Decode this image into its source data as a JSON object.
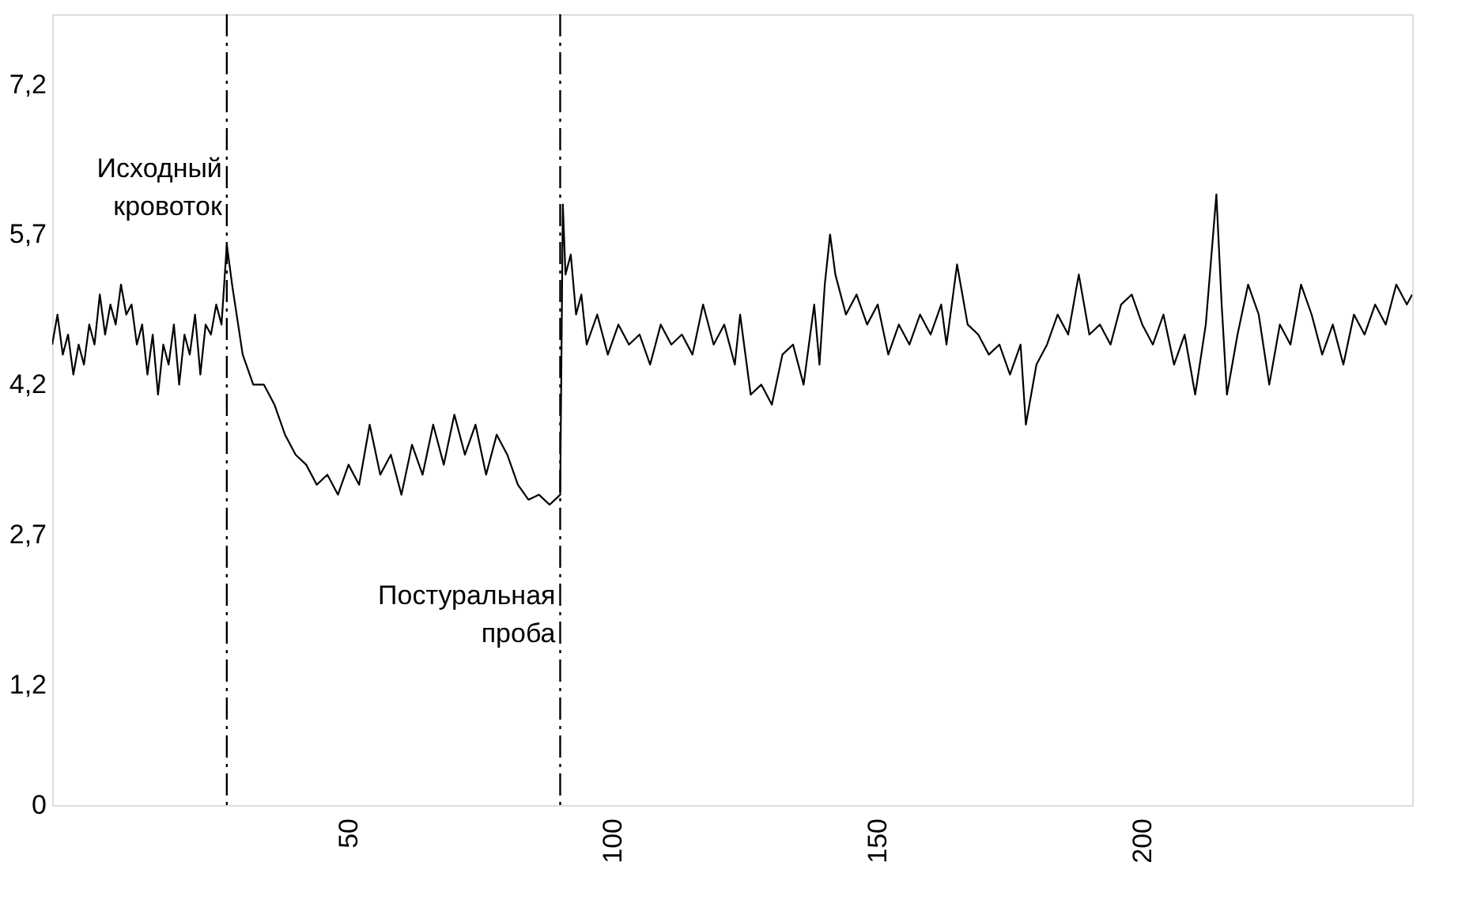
{
  "chart_data": {
    "type": "line",
    "x": [
      -6,
      -5,
      -4,
      -3,
      -2,
      -1,
      0,
      1,
      2,
      3,
      4,
      5,
      6,
      7,
      8,
      9,
      10,
      11,
      12,
      13,
      14,
      15,
      16,
      17,
      18,
      19,
      20,
      21,
      22,
      23,
      24,
      25,
      26,
      27,
      28,
      30,
      32,
      34,
      36,
      38,
      40,
      42,
      44,
      46,
      48,
      50,
      52,
      54,
      56,
      58,
      60,
      62,
      64,
      66,
      68,
      70,
      72,
      74,
      76,
      78,
      80,
      82,
      84,
      86,
      88,
      90,
      90.5,
      91,
      92,
      93,
      94,
      95,
      97,
      99,
      101,
      103,
      105,
      107,
      109,
      111,
      113,
      115,
      117,
      119,
      121,
      123,
      124,
      126,
      128,
      130,
      132,
      134,
      136,
      138,
      139,
      140,
      141,
      142,
      144,
      146,
      148,
      150,
      152,
      154,
      156,
      158,
      160,
      162,
      163,
      165,
      167,
      169,
      171,
      173,
      175,
      177,
      178,
      180,
      182,
      184,
      186,
      188,
      190,
      192,
      194,
      196,
      198,
      200,
      202,
      204,
      206,
      208,
      210,
      212,
      214,
      215,
      216,
      218,
      220,
      222,
      224,
      226,
      228,
      230,
      232,
      234,
      236,
      238,
      240,
      242,
      244,
      246,
      248,
      250,
      251
    ],
    "values": [
      4.6,
      4.9,
      4.5,
      4.7,
      4.3,
      4.6,
      4.4,
      4.8,
      4.6,
      5.1,
      4.7,
      5.0,
      4.8,
      5.2,
      4.9,
      5.0,
      4.6,
      4.8,
      4.3,
      4.7,
      4.1,
      4.6,
      4.4,
      4.8,
      4.2,
      4.7,
      4.5,
      4.9,
      4.3,
      4.8,
      4.7,
      5.0,
      4.8,
      5.6,
      5.2,
      4.5,
      4.2,
      4.2,
      4.0,
      3.7,
      3.5,
      3.4,
      3.2,
      3.3,
      3.1,
      3.4,
      3.2,
      3.8,
      3.3,
      3.5,
      3.1,
      3.6,
      3.3,
      3.8,
      3.4,
      3.9,
      3.5,
      3.8,
      3.3,
      3.7,
      3.5,
      3.2,
      3.05,
      3.1,
      3.0,
      3.1,
      6.0,
      5.3,
      5.5,
      4.9,
      5.1,
      4.6,
      4.9,
      4.5,
      4.8,
      4.6,
      4.7,
      4.4,
      4.8,
      4.6,
      4.7,
      4.5,
      5.0,
      4.6,
      4.8,
      4.4,
      4.9,
      4.1,
      4.2,
      4.0,
      4.5,
      4.6,
      4.2,
      5.0,
      4.4,
      5.2,
      5.7,
      5.3,
      4.9,
      5.1,
      4.8,
      5.0,
      4.5,
      4.8,
      4.6,
      4.9,
      4.7,
      5.0,
      4.6,
      5.4,
      4.8,
      4.7,
      4.5,
      4.6,
      4.3,
      4.6,
      3.8,
      4.4,
      4.6,
      4.9,
      4.7,
      5.3,
      4.7,
      4.8,
      4.6,
      5.0,
      5.1,
      4.8,
      4.6,
      4.9,
      4.4,
      4.7,
      4.1,
      4.8,
      6.1,
      5.0,
      4.1,
      4.7,
      5.2,
      4.9,
      4.2,
      4.8,
      4.6,
      5.2,
      4.9,
      4.5,
      4.8,
      4.4,
      4.9,
      4.7,
      5.0,
      4.8,
      5.2,
      5.0,
      5.1
    ],
    "color": "#000000",
    "xlim": [
      -6,
      251
    ],
    "xticks": [
      50,
      100,
      150,
      200
    ],
    "ylim": [
      0,
      7.9
    ],
    "yticks": [
      0,
      {
        "value": 1.2,
        "label": "1,2"
      },
      {
        "value": 2.7,
        "label": "2,7"
      },
      {
        "value": 4.2,
        "label": "4,2"
      },
      {
        "value": 5.7,
        "label": "5,7"
      },
      {
        "value": 7.2,
        "label": "7,2"
      }
    ],
    "ref_lines": [
      {
        "axis": "x",
        "value": 27,
        "label": "Исходный кровоток",
        "color": "#000000",
        "line_style": "dashdot"
      },
      {
        "axis": "x",
        "value": 90,
        "label": "Постуральная проба",
        "color": "#000000",
        "line_style": "dashdot"
      }
    ]
  }
}
